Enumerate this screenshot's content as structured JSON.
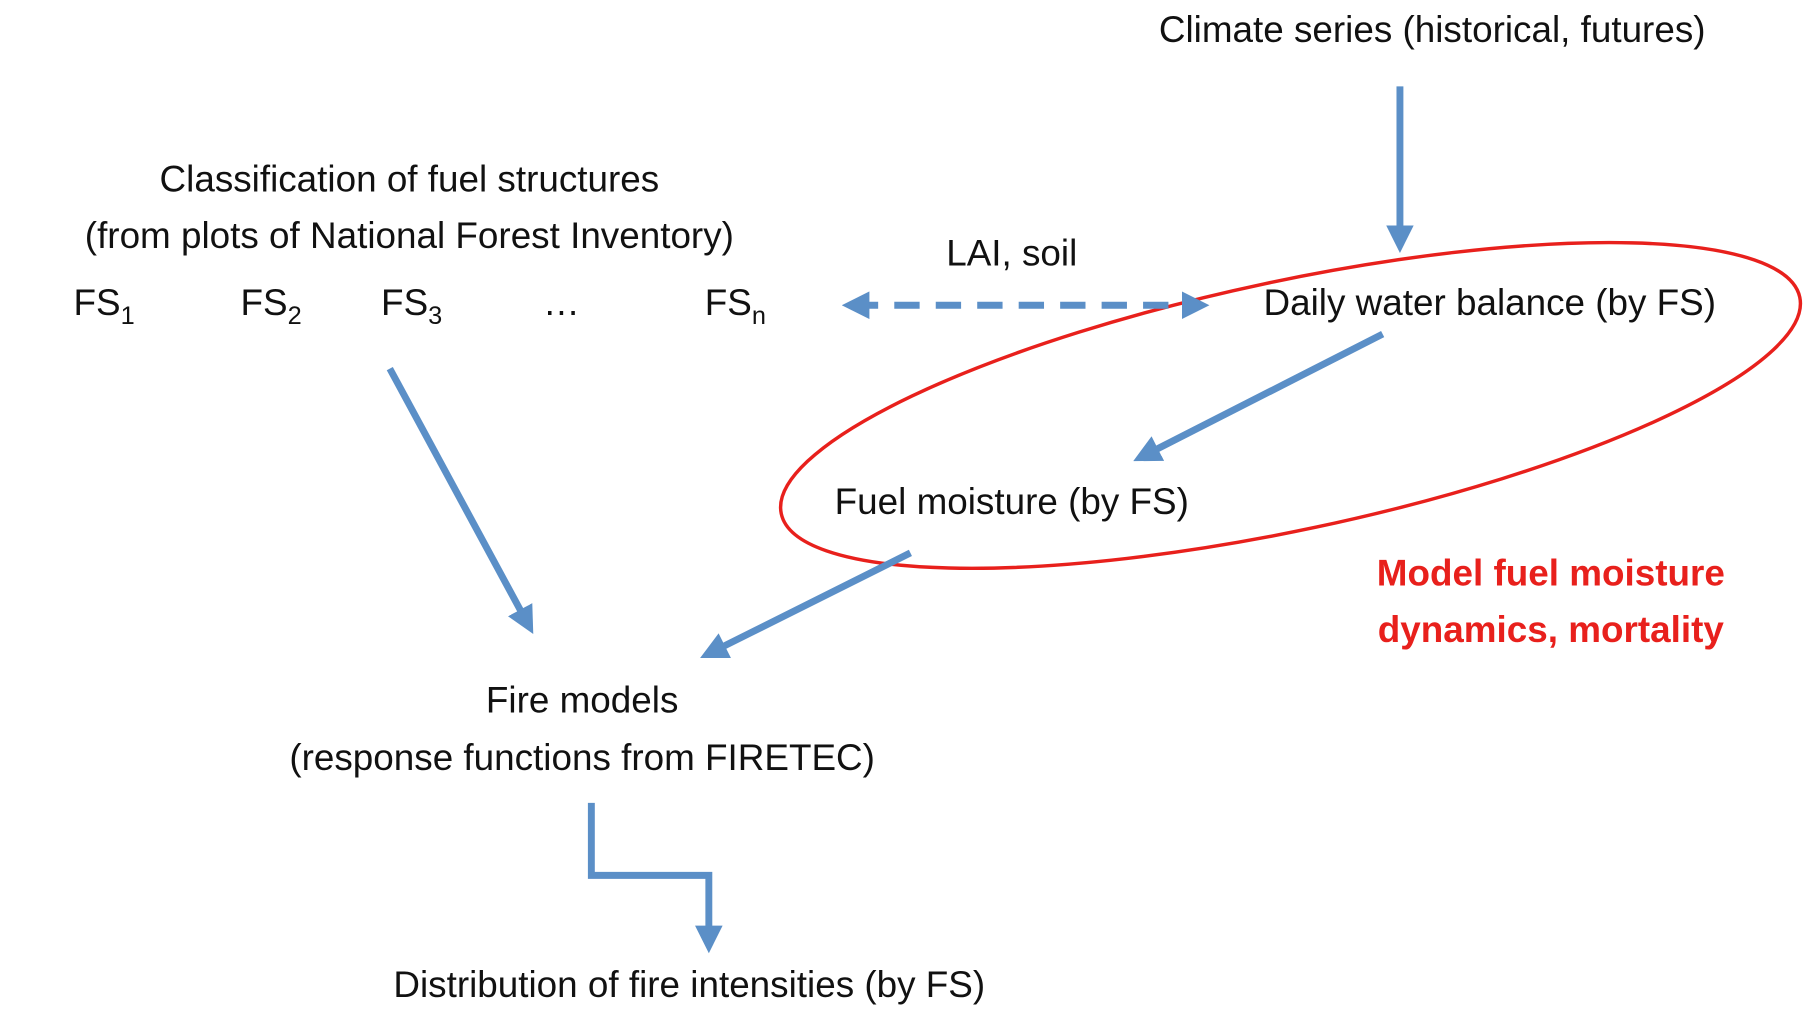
{
  "nodes": [
    {
      "label": "Climate series (historical, futures)"
    },
    {
      "lines": [
        "Classification of fuel structures",
        "(from plots of National Forest Inventory)"
      ],
      "items": [
        {
          "base": "FS",
          "sub": "1"
        },
        {
          "base": "FS",
          "sub": "2"
        },
        {
          "base": "FS",
          "sub": "3"
        },
        {
          "base": "…"
        },
        {
          "base": "FS",
          "sub": "n"
        }
      ]
    },
    {
      "label": "Daily water balance (by FS)"
    },
    {
      "label": "Fuel moisture (by FS)"
    },
    {
      "lines": [
        "Fire models",
        "(response functions from FIRETEC)"
      ]
    },
    {
      "label": "Distribution of fire intensities (by FS)"
    }
  ],
  "edge_label": "LAI, soil",
  "annotation": [
    "Model fuel moisture",
    "dynamics, mortality"
  ]
}
